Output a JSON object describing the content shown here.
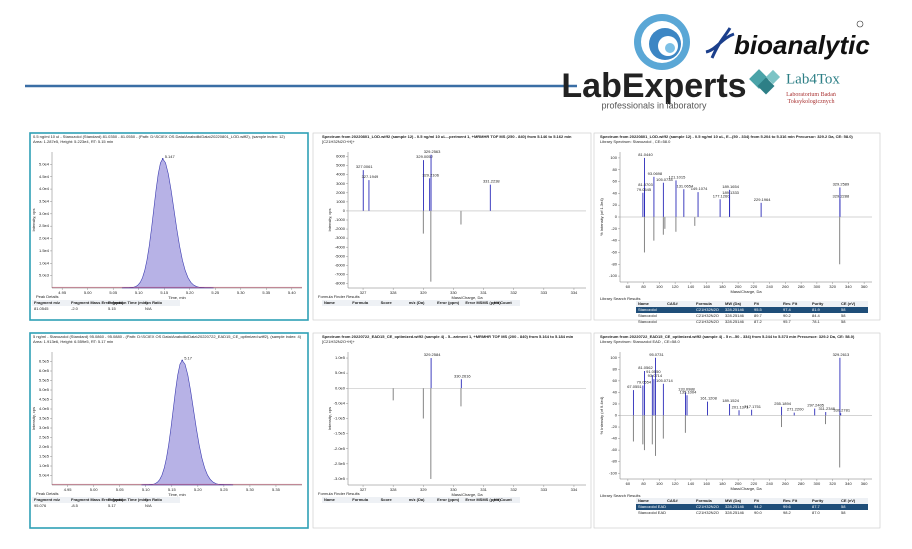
{
  "header": {
    "brand": "bioanalytic",
    "labexperts": "LabExperts",
    "labexperts_tagline": "professionals in laboratory",
    "lab4tox": "Lab4Tox",
    "lab4tox_tagline": "Laboratorium Badań Toksykologicznych"
  },
  "rows": [
    {
      "xic": {
        "title": "0.5 ng/ml 10 ul - Stanozolol (Standard) 81.0350 - 81.0550 - (Path: D:\\SCIEX OS Data\\AnabolikiData\\20220801_LOD.wiff2), (sample index: 12)",
        "info": "Area: 1.287e5, Height: 5.223e4, RT: 5.15 min",
        "xlabel": "Time, min",
        "ylabel": "Intensity, cps",
        "xlim": [
          4.93,
          5.42
        ],
        "ylim": [
          0,
          55000
        ],
        "xticks": [
          4.95,
          {
            "value": 5,
            "label": "5.00"
          },
          5.05,
          {
            "value": 5.1,
            "label": "5.10"
          },
          5.15,
          {
            "value": 5.2,
            "label": "5.20"
          },
          5.25,
          {
            "value": 5.3,
            "label": "5.30"
          },
          5.35,
          {
            "value": 5.4,
            "label": "5.40"
          }
        ],
        "yticks": [
          {
            "value": 50000,
            "label": "5.0e4"
          },
          {
            "value": 45000,
            "label": "4.5e4"
          },
          {
            "value": 40000,
            "label": "4.0e4"
          },
          {
            "value": 35000,
            "label": "3.5e4"
          },
          {
            "value": 30000,
            "label": "3.0e4"
          },
          {
            "value": 25000,
            "label": "2.5e4"
          },
          {
            "value": 20000,
            "label": "2.0e4"
          },
          {
            "value": 15000,
            "label": "1.5e4"
          },
          {
            "value": 10000,
            "label": "1.0e4"
          },
          {
            "value": 5000,
            "label": "5.0e3"
          }
        ],
        "peak": {
          "x": 5.147,
          "height": 52230,
          "label": "5.147"
        },
        "details": {
          "title": "Peak Details",
          "headers": [
            "Fragment m/z",
            "Fragment Mass Error (ppm)",
            "Retention Time (min)",
            "Ion Ratio"
          ],
          "rows": [
            [
              "81.0545",
              "-2.0",
              "5.15",
              "N/A"
            ]
          ]
        }
      },
      "spectrum": {
        "title": "Spectrum from 20220801_LOD.wiff2 (sample 12) - 0.5 ng/ml 10 uL...periment 1, +MRMHR TOF MS (250 - 840) from 5.146 to 5.162 min",
        "subtitle": "[C21H32N2O+H]+",
        "xlabel": "Mass/Charge, Da",
        "ylabel": "Intensity, cps",
        "xlim": [
          326.5,
          334.4
        ],
        "ylim": [
          -8500,
          6500
        ],
        "xticks": [
          327,
          328,
          329,
          330,
          331,
          332,
          333,
          334
        ],
        "yticks": [
          6000,
          5000,
          4000,
          3000,
          2000,
          1000,
          0,
          -1000,
          -2000,
          -3000,
          -4000,
          -5000,
          -6000,
          -7000,
          -8000
        ],
        "peaks": [
          {
            "mz": 327.0061,
            "intensity": 4500,
            "label": "327.0061"
          },
          {
            "mz": 327.1949,
            "intensity": 3400,
            "label": "327.1949"
          },
          {
            "mz": 329.0052,
            "intensity": 5600,
            "label": "329.0052"
          },
          {
            "mz": 329.2563,
            "intensity": 6200,
            "label": "329.2563"
          },
          {
            "mz": 329.2106,
            "intensity": 3600,
            "label": "329.2106"
          },
          {
            "mz": 331.2238,
            "intensity": 2900,
            "label": "331.2238"
          }
        ],
        "library_peaks": [
          {
            "mz": 329.25,
            "intensity": -7800
          },
          {
            "mz": 329.0,
            "intensity": -2500
          },
          {
            "mz": 330.25,
            "intensity": -1500
          }
        ],
        "results": {
          "title": "Formula Finder Results",
          "headers": [
            "Name",
            "Formula",
            "Score",
            "m/z (Da)",
            "Error (ppm)",
            "Error MSMS (ppm)",
            "Hit Count"
          ]
        }
      },
      "library": {
        "title": "Spectrum from 20220801_LOD.wiff2 (sample 12) - 0.5 ng/ml 10 uL, E...(50 - 334) from 5.204 to 5.316 min Precursor: 329.2 Da, CE: 58.0)",
        "subtitle": "Library Spectrum: Stanozolol , CE=58.0",
        "xlabel": "Mass/Charge, Da",
        "ylabel": "% Intensity (of 1.3e4)",
        "xlim": [
          50,
          370
        ],
        "ylim": [
          -110,
          110
        ],
        "xticks": [
          60,
          80,
          100,
          120,
          140,
          160,
          180,
          200,
          220,
          240,
          260,
          280,
          300,
          320,
          340,
          360
        ],
        "yticks": [
          100,
          80,
          60,
          40,
          20,
          0,
          -20,
          -40,
          -60,
          -80,
          -100
        ],
        "peaks": [
          {
            "mz": 81.044,
            "intensity": 100,
            "label": "81.0440"
          },
          {
            "mz": 93.0698,
            "intensity": 68,
            "label": "93.0698"
          },
          {
            "mz": 105.0734,
            "intensity": 58,
            "label": "105.0734"
          },
          {
            "mz": 121.1015,
            "intensity": 62,
            "label": "121.1015"
          },
          {
            "mz": 131.0654,
            "intensity": 47,
            "label": "131.0654"
          },
          {
            "mz": 149.1074,
            "intensity": 42,
            "label": "149.1074"
          },
          {
            "mz": 177.126,
            "intensity": 30,
            "label": "177.1260"
          },
          {
            "mz": 189.1654,
            "intensity": 46,
            "label": "189.1654"
          },
          {
            "mz": 189.1333,
            "intensity": 36,
            "label": "189.1333"
          },
          {
            "mz": 229.1964,
            "intensity": 24,
            "label": "229.1964"
          },
          {
            "mz": 81.0703,
            "intensity": 49,
            "label": "81.0703"
          },
          {
            "mz": 79.0545,
            "intensity": 41,
            "label": "79.0545"
          },
          {
            "mz": 329.2589,
            "intensity": 50,
            "label": "329.2589"
          },
          {
            "mz": 329.2288,
            "intensity": 30,
            "label": "329.2288"
          }
        ],
        "library_peaks": [
          {
            "mz": 81,
            "intensity": -60
          },
          {
            "mz": 93,
            "intensity": -40
          },
          {
            "mz": 105,
            "intensity": -30
          },
          {
            "mz": 107,
            "intensity": -20
          },
          {
            "mz": 121,
            "intensity": -25
          },
          {
            "mz": 145,
            "intensity": -15
          },
          {
            "mz": 329,
            "intensity": -80
          }
        ],
        "results": {
          "title": "Library Search Results",
          "headers": [
            "Name",
            "CAS#",
            "Formula",
            "MW (Da)",
            "Fit",
            "Rev. Fit",
            "Purity",
            "CE (eV)"
          ],
          "rows": [
            [
              "Stanozolol",
              "",
              "C21H32N2O",
              "328.25146",
              "95.5",
              "97.4",
              "81.9",
              "58"
            ],
            [
              "Stanozolol",
              "",
              "C21H32N2O",
              "328.25146",
              "89.7",
              "90.2",
              "84.4",
              "58"
            ],
            [
              "Stanozolol",
              "",
              "C21H32N2O",
              "328.25146",
              "87.2",
              "95.7",
              "78.1",
              "58"
            ]
          ]
        }
      }
    },
    {
      "xic": {
        "title": "5 ng/ml - Stanozolol (Standard) 95.0860 - 95.0880 - (Path: D:\\SCIEX OS Data\\AnabolikiData\\20220722_EAD15_CE_optimized.wiff2), (sample index: 4)",
        "info": "Area: 1.913e6, Height: 6.559e5, RT: 5.17 min",
        "xlabel": "Time, min",
        "ylabel": "Intensity, cps",
        "xlim": [
          4.92,
          5.4
        ],
        "ylim": [
          0,
          700000
        ],
        "xticks": [
          4.95,
          {
            "value": 5,
            "label": "5.00"
          },
          5.05,
          {
            "value": 5.1,
            "label": "5.10"
          },
          5.15,
          {
            "value": 5.2,
            "label": "5.20"
          },
          5.25,
          {
            "value": 5.3,
            "label": "5.30"
          },
          5.35
        ],
        "yticks": [
          {
            "value": 650000,
            "label": "6.5e5"
          },
          {
            "value": 600000,
            "label": "6.0e5"
          },
          {
            "value": 550000,
            "label": "5.5e5"
          },
          {
            "value": 500000,
            "label": "5.0e5"
          },
          {
            "value": 450000,
            "label": "4.5e5"
          },
          {
            "value": 400000,
            "label": "4.0e5"
          },
          {
            "value": 350000,
            "label": "3.5e5"
          },
          {
            "value": 300000,
            "label": "3.0e5"
          },
          {
            "value": 250000,
            "label": "2.5e5"
          },
          {
            "value": 200000,
            "label": "2.0e5"
          },
          {
            "value": 150000,
            "label": "1.5e5"
          },
          {
            "value": 100000,
            "label": "1.0e5"
          },
          {
            "value": 50000,
            "label": "5.0e4"
          }
        ],
        "peak": {
          "x": 5.17,
          "height": 655900,
          "label": "5.17"
        },
        "details": {
          "title": "Peak Details",
          "headers": [
            "Fragment m/z",
            "Fragment Mass Error (ppm)",
            "Retention Time (min)",
            "Ion Ratio"
          ],
          "rows": [
            [
              "95.076",
              "-8.5",
              "5.17",
              "N/A"
            ]
          ]
        }
      },
      "spectrum": {
        "title": "Spectrum from 20220722_EAD15_CE_optimized.wiff2 (sample 4) - 5...ariment 1, +MRMHR TOF MS (200 - 840) from 5.164 to 5.184 min",
        "subtitle": "[C21H32N2O+H]+",
        "xlabel": "Mass/Charge, Da",
        "ylabel": "Intensity, cps",
        "xlim": [
          326.5,
          334.4
        ],
        "ylim": [
          -320000,
          120000
        ],
        "xticks": [
          327,
          328,
          329,
          330,
          331,
          332,
          333,
          334
        ],
        "yticks": [
          {
            "value": 100000,
            "label": "1.0e5"
          },
          {
            "value": 50000,
            "label": "5.0e4"
          },
          {
            "value": 0,
            "label": "0.0e0"
          },
          {
            "value": -50000,
            "label": "-5.0e4"
          },
          {
            "value": -100000,
            "label": "-1.0e5"
          },
          {
            "value": -150000,
            "label": "-1.5e5"
          },
          {
            "value": -200000,
            "label": "-2.0e5"
          },
          {
            "value": -250000,
            "label": "-2.5e5"
          },
          {
            "value": -300000,
            "label": "-3.0e5"
          }
        ],
        "peaks": [
          {
            "mz": 329.2584,
            "intensity": 100000,
            "label": "329.2584"
          },
          {
            "mz": 330.2616,
            "intensity": 30000,
            "label": "330.2616"
          }
        ],
        "library_peaks": [
          {
            "mz": 329.25,
            "intensity": -300000
          },
          {
            "mz": 329.0,
            "intensity": -100000
          },
          {
            "mz": 330.25,
            "intensity": -60000
          },
          {
            "mz": 328.0,
            "intensity": -40000
          }
        ],
        "results": {
          "title": "Formula Finder Results",
          "headers": [
            "Name",
            "Formula",
            "Score",
            "m/z (Da)",
            "Error (ppm)",
            "Error MSMS (ppm)",
            "Hit Count"
          ]
        }
      },
      "library": {
        "title": "Spectrum from 20220722_EAD15_CE_optimized.wiff2 (sample 4) - 5 n...50 - 334) from 5.244 to 5.373 min Precursor: 329.2 Da, CE: 58.0)",
        "subtitle": "Library Spectrum: Stanozolol EAD , CE=58.0",
        "xlabel": "Mass/Charge, Da",
        "ylabel": "% Intensity (of 9.4e4)",
        "xlim": [
          50,
          370
        ],
        "ylim": [
          -110,
          110
        ],
        "xticks": [
          60,
          80,
          100,
          120,
          140,
          160,
          180,
          200,
          220,
          240,
          260,
          280,
          300,
          320,
          340,
          360
        ],
        "yticks": [
          100,
          80,
          60,
          40,
          20,
          0,
          -20,
          -40,
          -60,
          -80,
          -100
        ],
        "peaks": [
          {
            "mz": 95.0731,
            "intensity": 100,
            "label": "95.0731"
          },
          {
            "mz": 81.0562,
            "intensity": 77,
            "label": "81.0562"
          },
          {
            "mz": 91.055,
            "intensity": 70,
            "label": "91.0550"
          },
          {
            "mz": 93.0714,
            "intensity": 63,
            "label": "93.0714"
          },
          {
            "mz": 79.0554,
            "intensity": 52,
            "label": "79.0554"
          },
          {
            "mz": 67.0551,
            "intensity": 44,
            "label": "67.0551"
          },
          {
            "mz": 105.0714,
            "intensity": 55,
            "label": "105.0714"
          },
          {
            "mz": 133.0988,
            "intensity": 40,
            "label": "133.0988"
          },
          {
            "mz": 135.1004,
            "intensity": 35,
            "label": "135.1004"
          },
          {
            "mz": 161.1208,
            "intensity": 24,
            "label": "161.1208"
          },
          {
            "mz": 189.1524,
            "intensity": 20,
            "label": "189.1524"
          },
          {
            "mz": 201.1371,
            "intensity": 9,
            "label": "201.1371"
          },
          {
            "mz": 217.1751,
            "intensity": 10,
            "label": "217.1751"
          },
          {
            "mz": 255.1894,
            "intensity": 15,
            "label": "255.1894"
          },
          {
            "mz": 271.22,
            "intensity": 5,
            "label": "271.2200"
          },
          {
            "mz": 297.2405,
            "intensity": 12,
            "label": "297.2405"
          },
          {
            "mz": 311.2348,
            "intensity": 6,
            "label": "311.2348"
          },
          {
            "mz": 329.2613,
            "intensity": 100,
            "label": "329.2613"
          },
          {
            "mz": 330.2781,
            "intensity": 4,
            "label": "330.2781"
          }
        ],
        "library_peaks": [
          {
            "mz": 67,
            "intensity": -45
          },
          {
            "mz": 79,
            "intensity": -50
          },
          {
            "mz": 81,
            "intensity": -60
          },
          {
            "mz": 91,
            "intensity": -50
          },
          {
            "mz": 95,
            "intensity": -70
          },
          {
            "mz": 105,
            "intensity": -40
          },
          {
            "mz": 133,
            "intensity": -30
          },
          {
            "mz": 255,
            "intensity": -20
          },
          {
            "mz": 311,
            "intensity": -15
          },
          {
            "mz": 329,
            "intensity": -90
          }
        ],
        "results": {
          "title": "Library Search Results",
          "headers": [
            "Name",
            "CAS#",
            "Formula",
            "MW (Da)",
            "Fit",
            "Rev. Fit",
            "Purity",
            "CE (eV)"
          ],
          "rows": [
            [
              "Stanozolol EAD",
              "",
              "C21H32N2O",
              "328.25146",
              "94.2",
              "99.6",
              "87.7",
              "58"
            ],
            [
              "Stanozolol EAD",
              "",
              "C21H32N2O",
              "328.25146",
              "90.0",
              "98.2",
              "87.0",
              "58"
            ]
          ]
        }
      }
    }
  ]
}
